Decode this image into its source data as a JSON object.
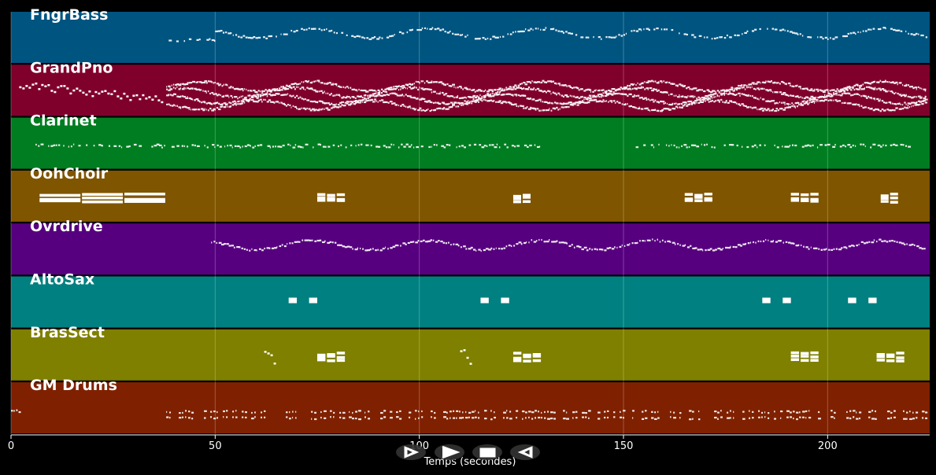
{
  "chart_data": {
    "type": "piano-roll",
    "xlabel": "Temps (secondes)",
    "xlim": [
      0,
      225
    ],
    "x_ticks": [
      0,
      50,
      100,
      150,
      200
    ],
    "grid": true,
    "tracks": [
      {
        "name": "FngrBass",
        "color": "#005480",
        "segments": [
          {
            "start": 38,
            "end": 50,
            "density": 0.55,
            "pattern": "line"
          },
          {
            "start": 50,
            "end": 224,
            "density": 0.8,
            "pattern": "wave"
          }
        ]
      },
      {
        "name": "GrandPno",
        "color": "#80002c",
        "segments": [
          {
            "start": 2,
            "end": 37,
            "density": 0.35,
            "pattern": "diagonal"
          },
          {
            "start": 38,
            "end": 224,
            "density": 1.0,
            "pattern": "dense"
          }
        ]
      },
      {
        "name": "Clarinet",
        "color": "#007d21",
        "segments": [
          {
            "start": 6,
            "end": 130,
            "density": 0.7,
            "pattern": "line"
          },
          {
            "start": 153,
            "end": 220,
            "density": 0.7,
            "pattern": "line"
          }
        ]
      },
      {
        "name": "OohChoir",
        "color": "#7f5500",
        "segments": [
          {
            "start": 7,
            "end": 37,
            "density": 1.0,
            "pattern": "chords"
          },
          {
            "start": 75,
            "end": 81,
            "density": 1.0,
            "pattern": "chords"
          },
          {
            "start": 123,
            "end": 128,
            "density": 1.0,
            "pattern": "chords"
          },
          {
            "start": 165,
            "end": 171,
            "density": 1.0,
            "pattern": "chords"
          },
          {
            "start": 191,
            "end": 197,
            "density": 1.0,
            "pattern": "chords"
          },
          {
            "start": 213,
            "end": 218,
            "density": 1.0,
            "pattern": "chords"
          }
        ]
      },
      {
        "name": "Ovrdrive",
        "color": "#57007f",
        "segments": [
          {
            "start": 49,
            "end": 224,
            "density": 1.0,
            "pattern": "wave"
          }
        ]
      },
      {
        "name": "AltoSax",
        "color": "#008080",
        "segments": [
          {
            "start": 68,
            "end": 70,
            "density": 1.0,
            "pattern": "block"
          },
          {
            "start": 73,
            "end": 75,
            "density": 1.0,
            "pattern": "block"
          },
          {
            "start": 115,
            "end": 117,
            "density": 1.0,
            "pattern": "block"
          },
          {
            "start": 120,
            "end": 122,
            "density": 1.0,
            "pattern": "block"
          },
          {
            "start": 184,
            "end": 186,
            "density": 1.0,
            "pattern": "block"
          },
          {
            "start": 189,
            "end": 191,
            "density": 1.0,
            "pattern": "block"
          },
          {
            "start": 205,
            "end": 207,
            "density": 1.0,
            "pattern": "block"
          },
          {
            "start": 210,
            "end": 212,
            "density": 1.0,
            "pattern": "block"
          }
        ]
      },
      {
        "name": "BrasSect",
        "color": "#7f7f00",
        "segments": [
          {
            "start": 62,
            "end": 65,
            "density": 1.0,
            "pattern": "diagonal"
          },
          {
            "start": 75,
            "end": 81,
            "density": 1.0,
            "pattern": "chords"
          },
          {
            "start": 110,
            "end": 113,
            "density": 1.0,
            "pattern": "diagonal"
          },
          {
            "start": 123,
            "end": 129,
            "density": 1.0,
            "pattern": "chords"
          },
          {
            "start": 191,
            "end": 197,
            "density": 1.0,
            "pattern": "chords"
          },
          {
            "start": 212,
            "end": 218,
            "density": 1.0,
            "pattern": "chords"
          }
        ]
      },
      {
        "name": "GM Drums",
        "color": "#7f2100",
        "segments": [
          {
            "start": 0,
            "end": 2,
            "density": 1.0,
            "pattern": "line"
          },
          {
            "start": 38,
            "end": 224,
            "density": 0.6,
            "pattern": "drums"
          }
        ]
      }
    ]
  },
  "controls": {
    "play_icon": "play-icon",
    "forward_icon": "forward-icon",
    "stop_icon": "stop-icon",
    "rewind_icon": "rewind-icon"
  }
}
